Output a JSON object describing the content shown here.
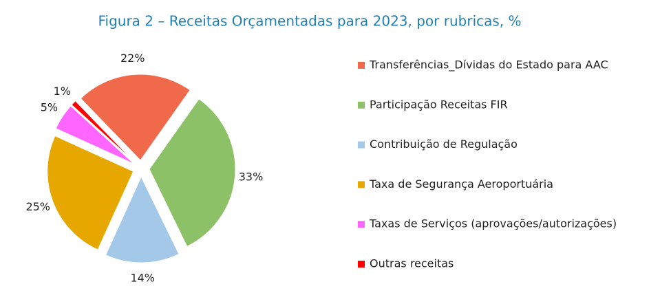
{
  "chart_data": {
    "type": "pie",
    "title": "Figura 2 – Receitas Orçamentadas para 2023, por rubricas, %",
    "categories": [
      "Transferências_Dívidas do Estado para AAC",
      "Participação Receitas FIR",
      "Contribuição de Regulação",
      "Taxa de Segurança Aeroportuária",
      "Taxas de Serviços (aprovações/autorizações)",
      "Outras receitas"
    ],
    "values": [
      22,
      33,
      14,
      25,
      5,
      1
    ],
    "value_labels": [
      "22%",
      "33%",
      "14%",
      "25%",
      "5%",
      "1%"
    ],
    "colors": [
      "#f0694a",
      "#8cc168",
      "#a4c8e8",
      "#e6a800",
      "#ff66ff",
      "#ff0000"
    ],
    "legend": "right"
  }
}
